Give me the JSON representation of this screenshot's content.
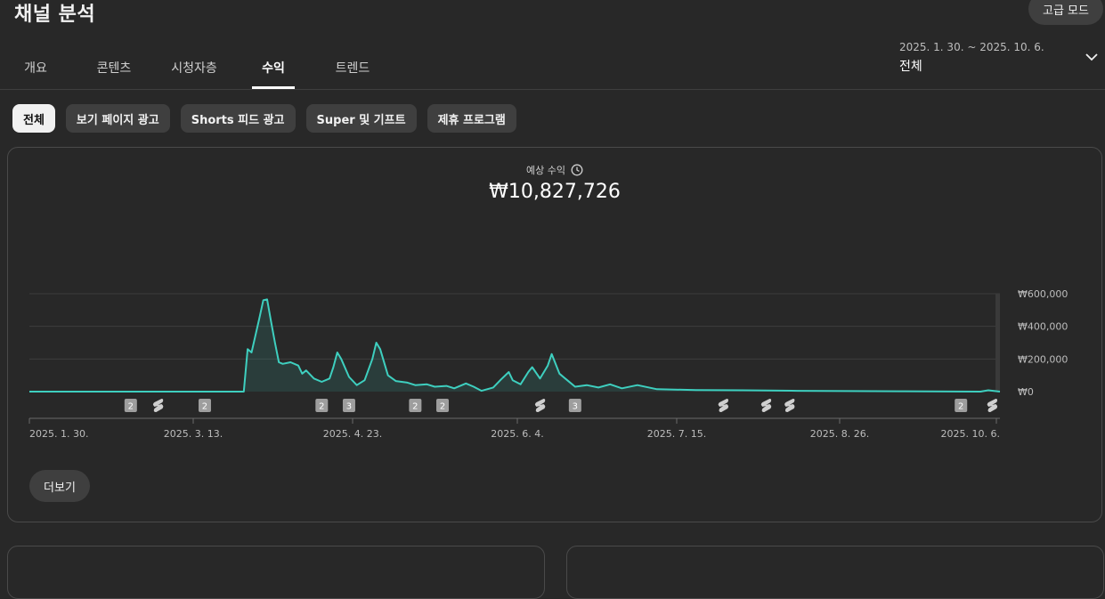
{
  "page": {
    "title": "채널 분석",
    "advanced_mode_label": "고급 모드"
  },
  "tabs": [
    {
      "label": "개요"
    },
    {
      "label": "콘텐츠"
    },
    {
      "label": "시청자층"
    },
    {
      "label": "수익",
      "active": true
    },
    {
      "label": "트렌드"
    }
  ],
  "date_picker": {
    "range": "2025. 1. 30. ~ 2025. 10. 6.",
    "label": "전체",
    "icon": "chevron-down-icon"
  },
  "chips": [
    {
      "label": "전체",
      "active": true
    },
    {
      "label": "보기 페이지 광고"
    },
    {
      "label": "Shorts 피드 광고"
    },
    {
      "label": "Super 및 기프트"
    },
    {
      "label": "제휴 프로그램"
    }
  ],
  "metric": {
    "label": "예상 수익",
    "icon": "clock-icon",
    "value": "₩10,827,726"
  },
  "chart_data": {
    "type": "area",
    "ylim": [
      0,
      600000
    ],
    "y_ticks": [
      {
        "value": 0,
        "label": "₩0"
      },
      {
        "value": 200000,
        "label": "₩200,000"
      },
      {
        "value": 400000,
        "label": "₩400,000"
      },
      {
        "value": 600000,
        "label": "₩600,000"
      }
    ],
    "x_ticks": [
      "2025. 1. 30.",
      "2025. 3. 13.",
      "2025. 4. 23.",
      "2025. 6. 4.",
      "2025. 7. 15.",
      "2025. 8. 26.",
      "2025. 10. 6."
    ],
    "x_range": [
      "2025-01-30",
      "2025-10-06"
    ],
    "grid": true,
    "color": "#3ecfbf",
    "series": [
      {
        "points": [
          [
            "2025-01-30",
            0
          ],
          [
            "2025-03-26",
            0
          ],
          [
            "2025-03-27",
            260000
          ],
          [
            "2025-03-28",
            240000
          ],
          [
            "2025-03-30",
            450000
          ],
          [
            "2025-03-31",
            560000
          ],
          [
            "2025-04-01",
            565000
          ],
          [
            "2025-04-02",
            430000
          ],
          [
            "2025-04-03",
            300000
          ],
          [
            "2025-04-04",
            180000
          ],
          [
            "2025-04-05",
            170000
          ],
          [
            "2025-04-07",
            180000
          ],
          [
            "2025-04-09",
            160000
          ],
          [
            "2025-04-10",
            110000
          ],
          [
            "2025-04-11",
            130000
          ],
          [
            "2025-04-13",
            80000
          ],
          [
            "2025-04-15",
            60000
          ],
          [
            "2025-04-17",
            80000
          ],
          [
            "2025-04-18",
            150000
          ],
          [
            "2025-04-19",
            240000
          ],
          [
            "2025-04-20",
            200000
          ],
          [
            "2025-04-22",
            90000
          ],
          [
            "2025-04-24",
            40000
          ],
          [
            "2025-04-26",
            70000
          ],
          [
            "2025-04-28",
            200000
          ],
          [
            "2025-04-29",
            300000
          ],
          [
            "2025-04-30",
            260000
          ],
          [
            "2025-05-02",
            100000
          ],
          [
            "2025-05-04",
            65000
          ],
          [
            "2025-05-07",
            55000
          ],
          [
            "2025-05-09",
            40000
          ],
          [
            "2025-05-12",
            45000
          ],
          [
            "2025-05-14",
            30000
          ],
          [
            "2025-05-17",
            35000
          ],
          [
            "2025-05-19",
            20000
          ],
          [
            "2025-05-22",
            50000
          ],
          [
            "2025-05-24",
            30000
          ],
          [
            "2025-05-26",
            5000
          ],
          [
            "2025-05-29",
            25000
          ],
          [
            "2025-05-31",
            75000
          ],
          [
            "2025-06-02",
            120000
          ],
          [
            "2025-06-03",
            70000
          ],
          [
            "2025-06-05",
            45000
          ],
          [
            "2025-06-07",
            120000
          ],
          [
            "2025-06-08",
            150000
          ],
          [
            "2025-06-10",
            80000
          ],
          [
            "2025-06-12",
            160000
          ],
          [
            "2025-06-13",
            230000
          ],
          [
            "2025-06-15",
            110000
          ],
          [
            "2025-06-17",
            70000
          ],
          [
            "2025-06-19",
            30000
          ],
          [
            "2025-06-22",
            40000
          ],
          [
            "2025-06-25",
            25000
          ],
          [
            "2025-06-28",
            45000
          ],
          [
            "2025-07-01",
            20000
          ],
          [
            "2025-07-05",
            40000
          ],
          [
            "2025-07-10",
            15000
          ],
          [
            "2025-07-20",
            10000
          ],
          [
            "2025-08-01",
            8000
          ],
          [
            "2025-08-15",
            5000
          ],
          [
            "2025-09-10",
            2000
          ],
          [
            "2025-10-01",
            0
          ],
          [
            "2025-10-03",
            8000
          ],
          [
            "2025-10-06",
            0
          ]
        ]
      }
    ],
    "markers": [
      {
        "date": "2025-02-25",
        "type": "count",
        "label": "2"
      },
      {
        "date": "2025-03-04",
        "type": "shorts"
      },
      {
        "date": "2025-03-16",
        "type": "count",
        "label": "2"
      },
      {
        "date": "2025-04-15",
        "type": "count",
        "label": "2"
      },
      {
        "date": "2025-04-22",
        "type": "count",
        "label": "3"
      },
      {
        "date": "2025-05-09",
        "type": "count",
        "label": "2"
      },
      {
        "date": "2025-05-16",
        "type": "count",
        "label": "2"
      },
      {
        "date": "2025-06-10",
        "type": "shorts"
      },
      {
        "date": "2025-06-19",
        "type": "count",
        "label": "3"
      },
      {
        "date": "2025-07-27",
        "type": "shorts"
      },
      {
        "date": "2025-08-07",
        "type": "shorts"
      },
      {
        "date": "2025-08-13",
        "type": "shorts"
      },
      {
        "date": "2025-09-26",
        "type": "count",
        "label": "2"
      },
      {
        "date": "2025-10-04",
        "type": "shorts"
      }
    ]
  },
  "more_label": "더보기"
}
